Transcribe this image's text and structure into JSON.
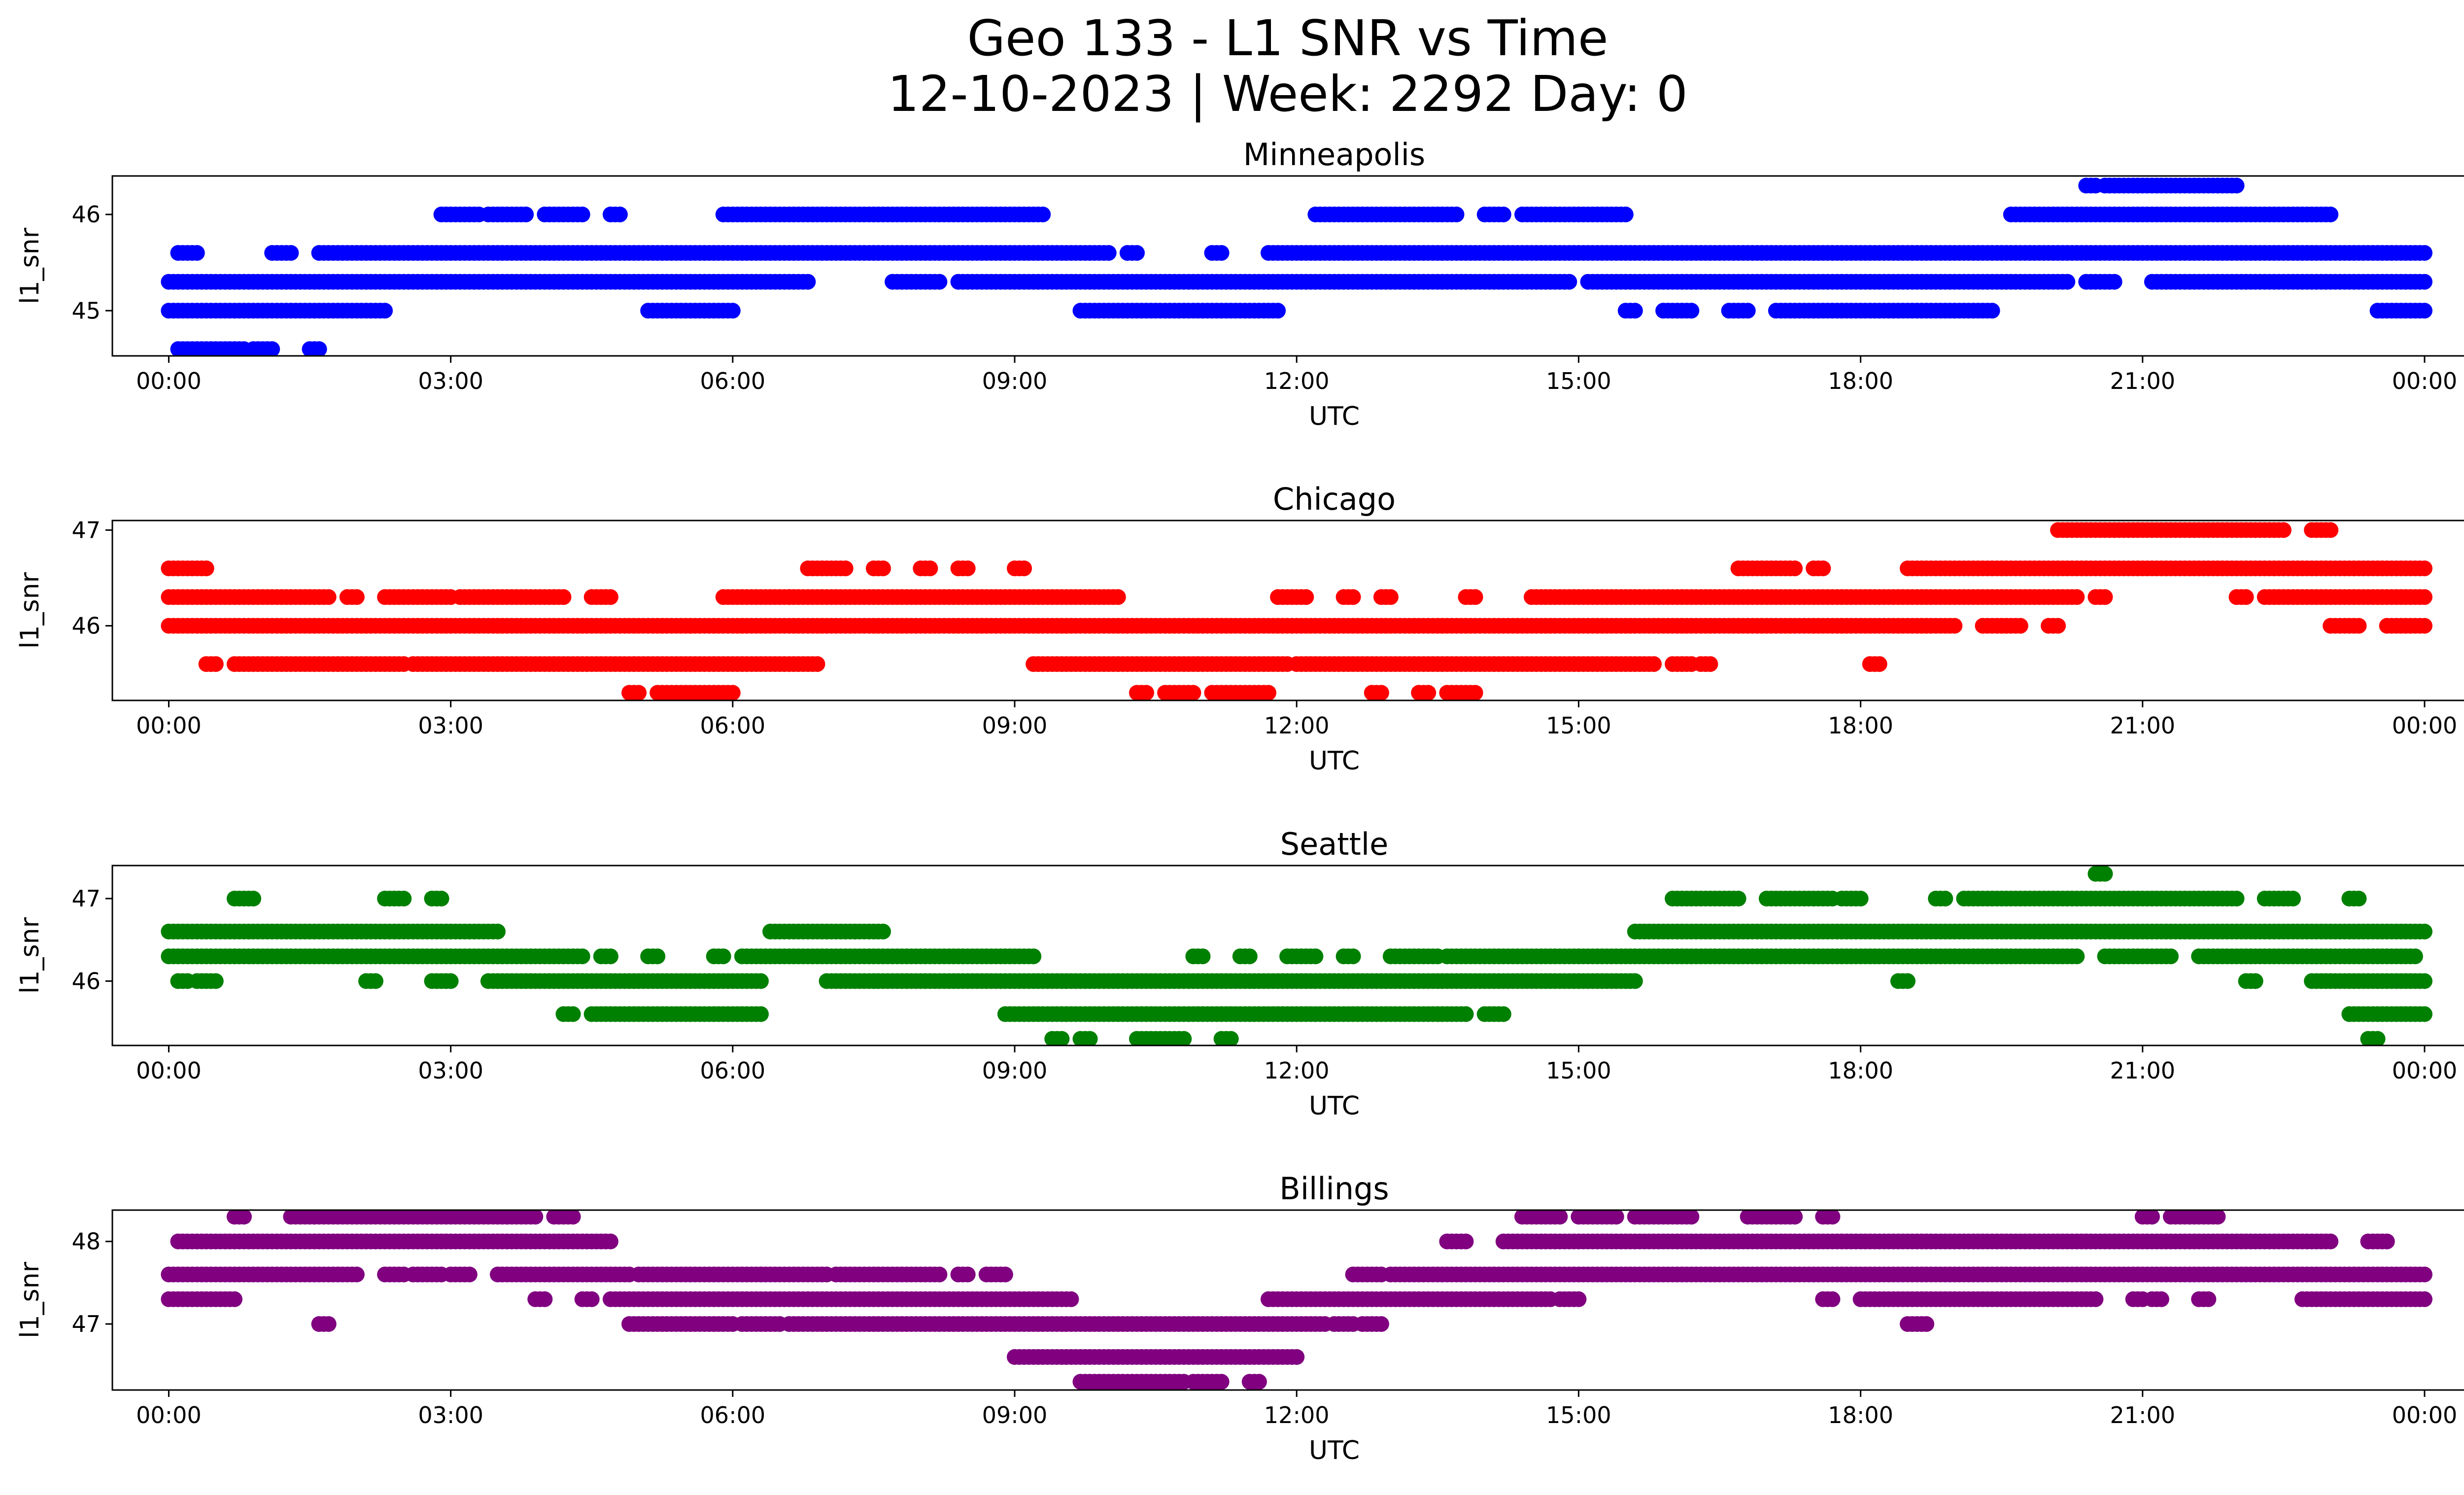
{
  "title_line1": "Geo 133 - L1 SNR vs Time",
  "title_line2": "12-10-2023 | Week: 2292 Day: 0",
  "colors": {
    "Minneapolis": "#0000ff",
    "Chicago": "#ff0000",
    "Seattle": "#008000",
    "Billings": "#800080"
  },
  "chart_data": [
    {
      "type": "scatter",
      "title": "Minneapolis",
      "xlabel": "UTC",
      "ylabel": "l1_snr",
      "color": "#0000ff",
      "xlim_hours": [
        -0.6,
        25.4
      ],
      "ylim": [
        44.53,
        46.4
      ],
      "x_ticks": [
        "00:00",
        "03:00",
        "06:00",
        "09:00",
        "12:00",
        "15:00",
        "18:00",
        "21:00",
        "00:00"
      ],
      "y_ticks": [
        45,
        46
      ],
      "bands": [
        {
          "y": 46.3,
          "ranges": [
            [
              20.4,
              20.5
            ],
            [
              20.6,
              22.0
            ]
          ]
        },
        {
          "y": 46.0,
          "ranges": [
            [
              2.9,
              3.3
            ],
            [
              3.4,
              3.8
            ],
            [
              4.0,
              4.4
            ],
            [
              4.7,
              4.8
            ],
            [
              5.9,
              9.3
            ],
            [
              12.2,
              13.7
            ],
            [
              14.0,
              14.2
            ],
            [
              14.4,
              15.5
            ],
            [
              19.6,
              23.0
            ]
          ]
        },
        {
          "y": 45.6,
          "ranges": [
            [
              0.1,
              0.3
            ],
            [
              1.1,
              1.3
            ],
            [
              1.6,
              10.0
            ],
            [
              10.2,
              10.3
            ],
            [
              11.1,
              11.2
            ],
            [
              11.7,
              24.0
            ]
          ]
        },
        {
          "y": 45.3,
          "ranges": [
            [
              0.0,
              6.8
            ],
            [
              7.7,
              8.2
            ],
            [
              8.4,
              14.9
            ],
            [
              15.1,
              20.2
            ],
            [
              20.4,
              20.7
            ],
            [
              21.1,
              24.0
            ]
          ]
        },
        {
          "y": 45.0,
          "ranges": [
            [
              0.0,
              2.3
            ],
            [
              5.1,
              6.0
            ],
            [
              9.7,
              11.8
            ],
            [
              15.5,
              15.6
            ],
            [
              15.9,
              16.2
            ],
            [
              16.6,
              16.8
            ],
            [
              17.1,
              19.4
            ],
            [
              23.5,
              24.0
            ]
          ]
        },
        {
          "y": 44.6,
          "ranges": [
            [
              0.1,
              0.8
            ],
            [
              0.9,
              1.1
            ],
            [
              1.5,
              1.6
            ]
          ]
        }
      ]
    },
    {
      "type": "scatter",
      "title": "Chicago",
      "xlabel": "UTC",
      "ylabel": "l1_snr",
      "color": "#ff0000",
      "xlim_hours": [
        -0.6,
        25.4
      ],
      "ylim": [
        45.22,
        47.1
      ],
      "x_ticks": [
        "00:00",
        "03:00",
        "06:00",
        "09:00",
        "12:00",
        "15:00",
        "18:00",
        "21:00",
        "00:00"
      ],
      "y_ticks": [
        46,
        47
      ],
      "bands": [
        {
          "y": 47.0,
          "ranges": [
            [
              20.1,
              22.5
            ],
            [
              22.8,
              23.0
            ]
          ]
        },
        {
          "y": 46.6,
          "ranges": [
            [
              0.0,
              0.4
            ],
            [
              6.8,
              7.2
            ],
            [
              7.5,
              7.6
            ],
            [
              8.0,
              8.1
            ],
            [
              8.4,
              8.5
            ],
            [
              9.0,
              9.1
            ],
            [
              16.7,
              17.3
            ],
            [
              17.5,
              17.6
            ],
            [
              18.5,
              24.0
            ]
          ]
        },
        {
          "y": 46.3,
          "ranges": [
            [
              0.0,
              1.7
            ],
            [
              1.9,
              2.0
            ],
            [
              2.3,
              3.0
            ],
            [
              3.1,
              4.2
            ],
            [
              4.5,
              4.7
            ],
            [
              5.9,
              6.6
            ],
            [
              6.6,
              10.1
            ],
            [
              11.8,
              12.1
            ],
            [
              12.5,
              12.6
            ],
            [
              12.9,
              13.0
            ],
            [
              13.8,
              13.9
            ],
            [
              14.5,
              20.3
            ],
            [
              20.5,
              20.6
            ],
            [
              22.0,
              22.1
            ],
            [
              22.3,
              24.0
            ]
          ]
        },
        {
          "y": 46.0,
          "ranges": [
            [
              0.0,
              19.0
            ],
            [
              19.3,
              19.7
            ],
            [
              20.0,
              20.1
            ],
            [
              23.0,
              23.3
            ],
            [
              23.6,
              24.0
            ]
          ]
        },
        {
          "y": 45.6,
          "ranges": [
            [
              0.4,
              0.5
            ],
            [
              0.7,
              2.5
            ],
            [
              2.6,
              6.9
            ],
            [
              9.2,
              11.9
            ],
            [
              12.0,
              15.8
            ],
            [
              16.0,
              16.2
            ],
            [
              16.3,
              16.4
            ],
            [
              18.1,
              18.2
            ]
          ]
        },
        {
          "y": 45.3,
          "ranges": [
            [
              4.9,
              5.0
            ],
            [
              5.2,
              6.0
            ],
            [
              10.3,
              10.4
            ],
            [
              10.6,
              10.9
            ],
            [
              11.1,
              11.7
            ],
            [
              12.8,
              12.9
            ],
            [
              13.3,
              13.4
            ],
            [
              13.6,
              13.9
            ]
          ]
        }
      ]
    },
    {
      "type": "scatter",
      "title": "Seattle",
      "xlabel": "UTC",
      "ylabel": "l1_snr",
      "color": "#008000",
      "xlim_hours": [
        -0.6,
        25.4
      ],
      "ylim": [
        45.22,
        47.4
      ],
      "x_ticks": [
        "00:00",
        "03:00",
        "06:00",
        "09:00",
        "12:00",
        "15:00",
        "18:00",
        "21:00",
        "00:00"
      ],
      "y_ticks": [
        46,
        47
      ],
      "bands": [
        {
          "y": 47.3,
          "ranges": [
            [
              20.5,
              20.6
            ]
          ]
        },
        {
          "y": 47.0,
          "ranges": [
            [
              0.7,
              0.9
            ],
            [
              2.3,
              2.5
            ],
            [
              2.8,
              2.9
            ],
            [
              16.0,
              16.7
            ],
            [
              17.0,
              17.7
            ],
            [
              17.8,
              18.0
            ],
            [
              18.8,
              18.9
            ],
            [
              19.1,
              22.0
            ],
            [
              22.3,
              22.6
            ],
            [
              23.2,
              23.3
            ]
          ]
        },
        {
          "y": 46.6,
          "ranges": [
            [
              0.0,
              3.5
            ],
            [
              6.4,
              7.3
            ],
            [
              7.3,
              7.6
            ],
            [
              15.6,
              24.0
            ]
          ]
        },
        {
          "y": 46.3,
          "ranges": [
            [
              0.0,
              4.4
            ],
            [
              4.6,
              4.7
            ],
            [
              5.1,
              5.2
            ],
            [
              5.8,
              5.9
            ],
            [
              6.1,
              9.2
            ],
            [
              10.9,
              11.0
            ],
            [
              11.4,
              11.5
            ],
            [
              11.9,
              12.2
            ],
            [
              12.5,
              12.6
            ],
            [
              13.0,
              13.5
            ],
            [
              13.6,
              20.3
            ],
            [
              20.6,
              21.3
            ],
            [
              21.6,
              23.9
            ]
          ]
        },
        {
          "y": 46.0,
          "ranges": [
            [
              0.1,
              0.2
            ],
            [
              0.3,
              0.5
            ],
            [
              2.1,
              2.2
            ],
            [
              2.8,
              3.0
            ],
            [
              3.4,
              6.3
            ],
            [
              7.0,
              15.6
            ],
            [
              18.4,
              18.5
            ],
            [
              22.1,
              22.2
            ],
            [
              22.8,
              24.0
            ]
          ]
        },
        {
          "y": 45.6,
          "ranges": [
            [
              4.2,
              4.3
            ],
            [
              4.5,
              6.3
            ],
            [
              8.9,
              13.8
            ],
            [
              14.0,
              14.2
            ],
            [
              23.2,
              24.0
            ]
          ]
        },
        {
          "y": 45.3,
          "ranges": [
            [
              9.4,
              9.5
            ],
            [
              9.7,
              9.8
            ],
            [
              10.3,
              10.8
            ],
            [
              11.2,
              11.3
            ],
            [
              23.4,
              23.5
            ]
          ]
        }
      ]
    },
    {
      "type": "scatter",
      "title": "Billings",
      "xlabel": "UTC",
      "ylabel": "l1_snr",
      "color": "#800080",
      "xlim_hours": [
        -0.6,
        25.4
      ],
      "ylim": [
        46.2,
        48.38
      ],
      "x_ticks": [
        "00:00",
        "03:00",
        "06:00",
        "09:00",
        "12:00",
        "15:00",
        "18:00",
        "21:00",
        "00:00"
      ],
      "y_ticks": [
        47,
        48
      ],
      "bands": [
        {
          "y": 48.3,
          "ranges": [
            [
              0.7,
              0.8
            ],
            [
              1.3,
              3.6
            ],
            [
              3.6,
              3.9
            ],
            [
              4.1,
              4.3
            ],
            [
              14.4,
              14.8
            ],
            [
              15.0,
              15.4
            ],
            [
              15.6,
              16.2
            ],
            [
              16.8,
              17.3
            ],
            [
              17.6,
              17.7
            ],
            [
              21.0,
              21.1
            ],
            [
              21.3,
              21.8
            ]
          ]
        },
        {
          "y": 48.0,
          "ranges": [
            [
              0.1,
              4.7
            ],
            [
              13.6,
              13.8
            ],
            [
              14.2,
              23.0
            ],
            [
              23.4,
              23.6
            ]
          ]
        },
        {
          "y": 47.6,
          "ranges": [
            [
              0.0,
              2.0
            ],
            [
              2.3,
              2.5
            ],
            [
              2.6,
              2.9
            ],
            [
              3.0,
              3.2
            ],
            [
              3.5,
              4.9
            ],
            [
              5.0,
              6.3
            ],
            [
              6.3,
              7.0
            ],
            [
              7.1,
              8.2
            ],
            [
              8.4,
              8.5
            ],
            [
              8.7,
              8.9
            ],
            [
              12.6,
              12.9
            ],
            [
              13.0,
              24.0
            ]
          ]
        },
        {
          "y": 47.3,
          "ranges": [
            [
              0.0,
              0.7
            ],
            [
              3.9,
              4.0
            ],
            [
              4.4,
              4.5
            ],
            [
              4.7,
              9.6
            ],
            [
              11.7,
              14.7
            ],
            [
              14.8,
              15.0
            ],
            [
              17.6,
              17.7
            ],
            [
              18.0,
              20.5
            ],
            [
              20.9,
              21.0
            ],
            [
              21.1,
              21.2
            ],
            [
              21.6,
              21.7
            ],
            [
              22.7,
              24.0
            ]
          ]
        },
        {
          "y": 47.0,
          "ranges": [
            [
              1.6,
              1.7
            ],
            [
              4.9,
              6.0
            ],
            [
              6.1,
              6.5
            ],
            [
              6.6,
              12.3
            ],
            [
              12.4,
              12.6
            ],
            [
              12.7,
              12.9
            ],
            [
              18.5,
              18.7
            ]
          ]
        },
        {
          "y": 46.6,
          "ranges": [
            [
              9.0,
              12.0
            ]
          ]
        },
        {
          "y": 46.3,
          "ranges": [
            [
              9.7,
              10.8
            ],
            [
              10.9,
              11.2
            ],
            [
              11.5,
              11.6
            ]
          ]
        }
      ]
    }
  ]
}
